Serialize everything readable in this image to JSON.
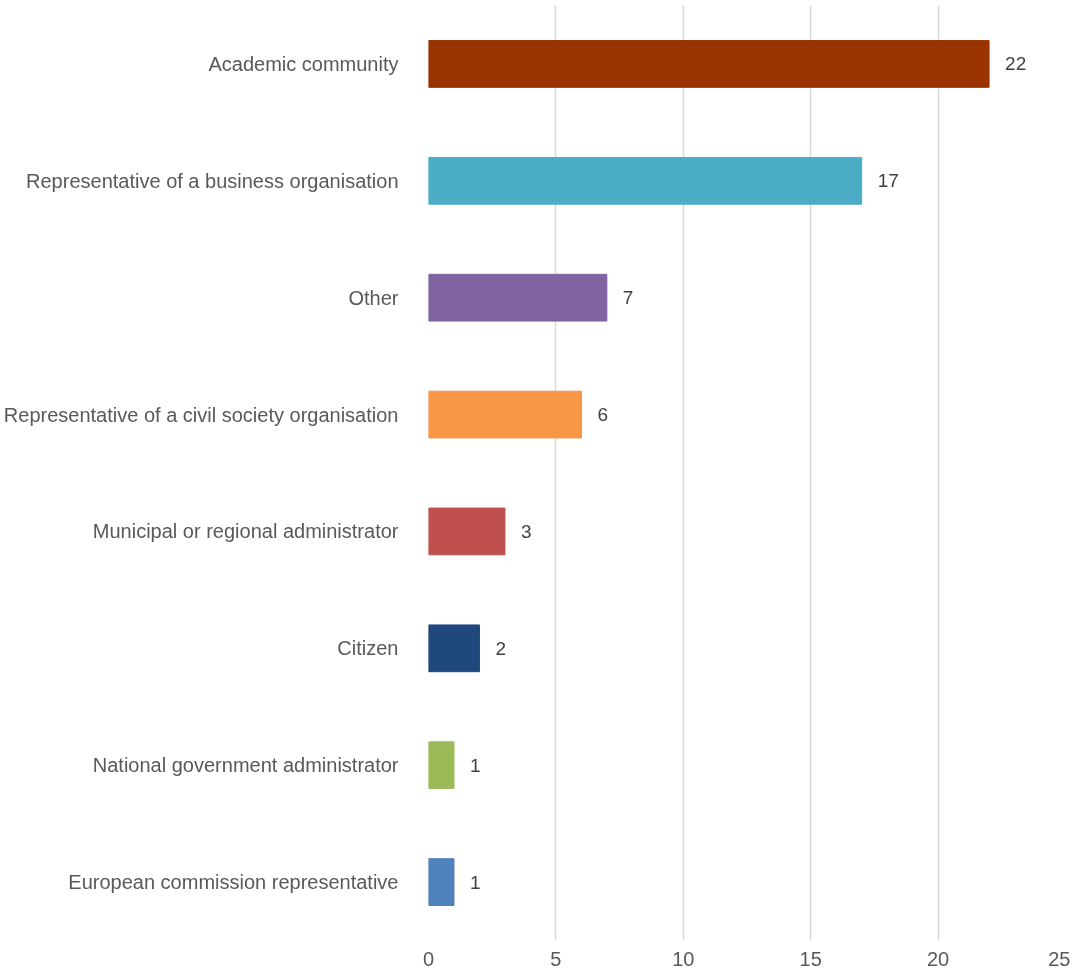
{
  "chart_data": {
    "type": "bar",
    "orientation": "horizontal",
    "categories": [
      "Academic community",
      "Representative of a business organisation",
      "Other",
      "Representative of a civil society organisation",
      "Municipal or regional administrator",
      "Citizen",
      "National government administrator",
      "European commission representative"
    ],
    "values": [
      22,
      17,
      7,
      6,
      3,
      2,
      1,
      1
    ],
    "colors": [
      "#993300",
      "#4bacc6",
      "#8064a2",
      "#f79646",
      "#c0504d",
      "#1f497d",
      "#9bbb59",
      "#4f81bd"
    ],
    "xlim": [
      0,
      25
    ],
    "xticks": [
      0,
      5,
      10,
      15,
      20,
      25
    ],
    "grid": "x",
    "data_labels": true
  }
}
